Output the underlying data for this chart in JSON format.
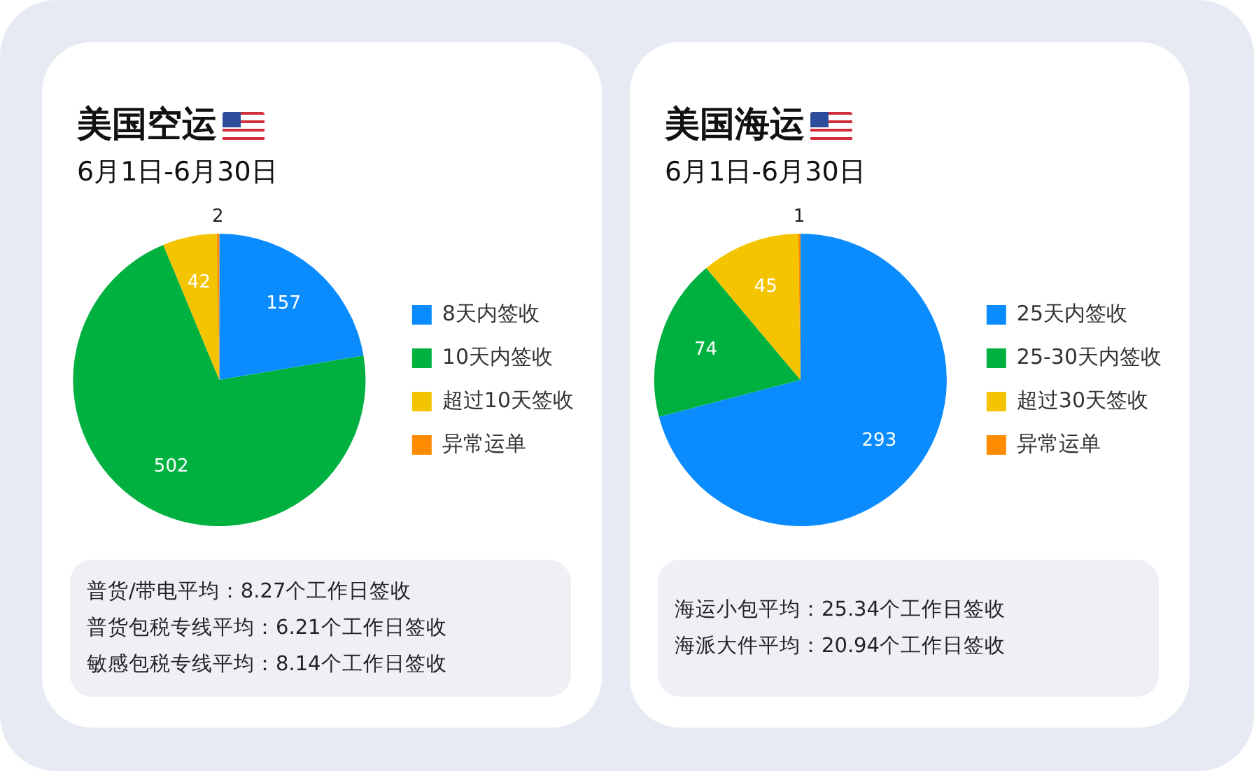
{
  "chart_data": [
    {
      "type": "pie",
      "title": "美国空运",
      "subtitle": "6月1日-6月30日",
      "categories": [
        "8天内签收",
        "10天内签收",
        "超过10天签收",
        "异常运单"
      ],
      "values": [
        157,
        502,
        42,
        2
      ],
      "colors": [
        "#0a8cff",
        "#00b140",
        "#f5c400",
        "#ff8c00"
      ],
      "legend": "right",
      "data_labels": true,
      "annotations": [
        "普货/带电平均：8.27个工作日签收",
        "普货包税专线平均：6.21个工作日签收",
        "敏感包税专线平均：8.14个工作日签收"
      ]
    },
    {
      "type": "pie",
      "title": "美国海运",
      "subtitle": "6月1日-6月30日",
      "categories": [
        "25天内签收",
        "25-30天内签收",
        "超过30天签收",
        "异常运单"
      ],
      "values": [
        293,
        74,
        45,
        1
      ],
      "colors": [
        "#0a8cff",
        "#00b140",
        "#f5c400",
        "#ff8c00"
      ],
      "legend": "right",
      "data_labels": true,
      "annotations": [
        "海运小包平均：25.34个工作日签收",
        "海派大件平均：20.94个工作日签收"
      ]
    }
  ]
}
